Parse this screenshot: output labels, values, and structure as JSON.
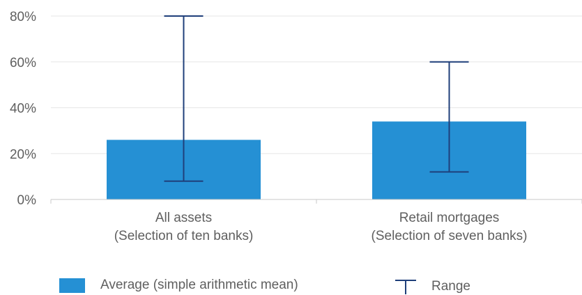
{
  "chart_data": {
    "type": "bar",
    "categories": [
      [
        "All assets",
        "(Selection of ten banks)"
      ],
      [
        "Retail mortgages",
        "(Selection of seven banks)"
      ]
    ],
    "series": [
      {
        "name": "Average (simple arithmetic mean)",
        "values": [
          26,
          34
        ]
      }
    ],
    "ranges": [
      {
        "name": "Range",
        "min": 8,
        "max": 80
      },
      {
        "name": "Range",
        "min": 12,
        "max": 60
      }
    ],
    "yticks": [
      "0%",
      "20%",
      "40%",
      "60%",
      "80%"
    ],
    "ytick_values": [
      0,
      20,
      40,
      60,
      80
    ],
    "ylim": [
      0,
      80
    ],
    "grid": true,
    "legend_position": "bottom",
    "colors": {
      "bar": "#2590d4",
      "range": "#1f3f7a",
      "grid": "#e6e6e6",
      "text": "#5f5f5f"
    }
  },
  "legend": {
    "average_label": "Average (simple arithmetic mean)",
    "range_label": "Range"
  }
}
